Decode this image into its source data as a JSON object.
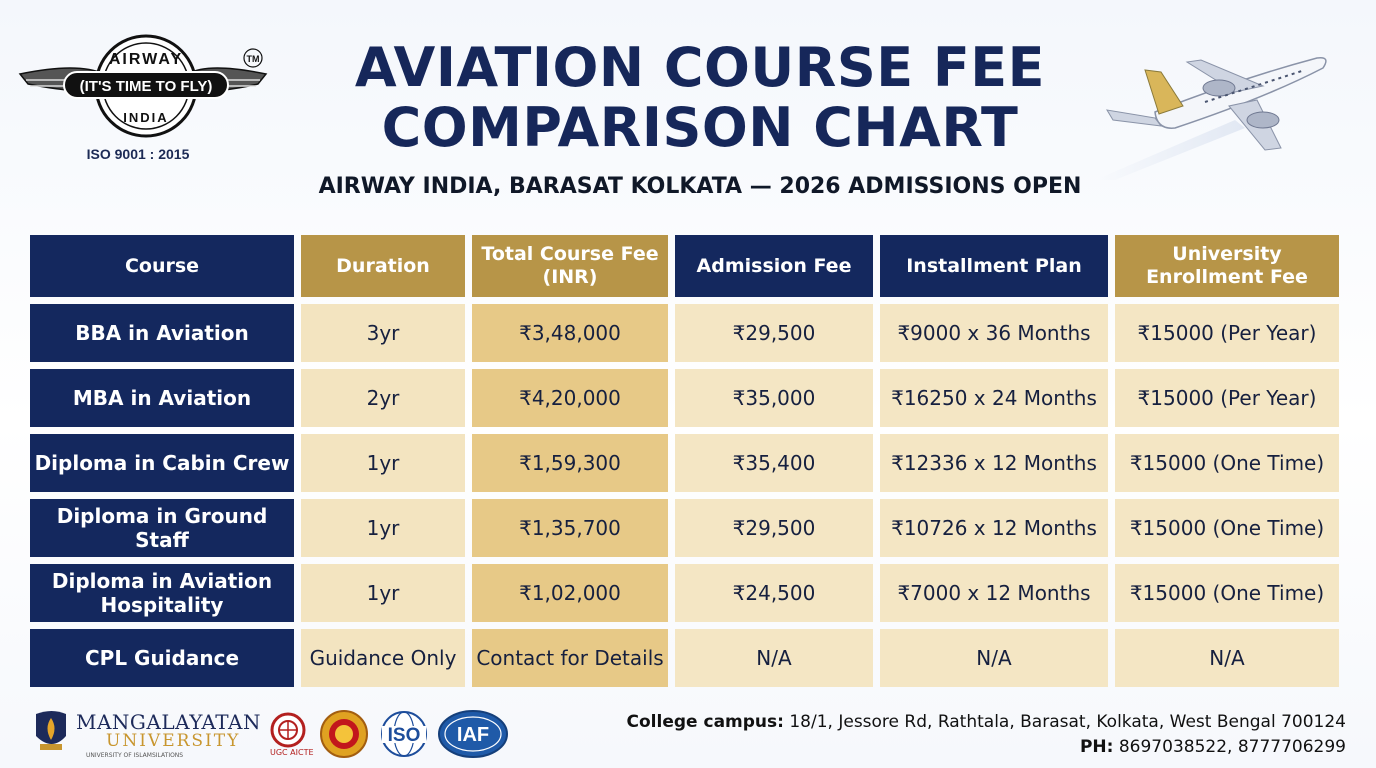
{
  "brand": {
    "top_text": "AIRWAY",
    "banner_text": "(IT'S TIME TO FLY)",
    "bottom_text": "INDIA",
    "tm": "TM",
    "iso": "ISO 9001 : 2015"
  },
  "title_line1": "AVIATION COURSE FEE",
  "title_line2": "COMPARISON CHART",
  "subtitle": "AIRWAY INDIA, BARASAT KOLKATA — 2026 ADMISSIONS OPEN",
  "table": {
    "headers": [
      "Course",
      "Duration",
      "Total Course Fee (INR)",
      "Admission Fee",
      "Installment Plan",
      "University Enrollment Fee"
    ],
    "rows": [
      [
        "BBA in Aviation",
        "3yr",
        "₹3,48,000",
        "₹29,500",
        "₹9000 x 36 Months",
        "₹15000 (Per Year)"
      ],
      [
        "MBA in Aviation",
        "2yr",
        "₹4,20,000",
        "₹35,000",
        "₹16250 x 24 Months",
        "₹15000 (Per Year)"
      ],
      [
        "Diploma in Cabin Crew",
        "1yr",
        "₹1,59,300",
        "₹35,400",
        "₹12336 x 12 Months",
        "₹15000 (One Time)"
      ],
      [
        "Diploma in Ground Staff",
        "1yr",
        "₹1,35,700",
        "₹29,500",
        "₹10726 x 12 Months",
        "₹15000 (One Time)"
      ],
      [
        "Diploma in Aviation Hospitality",
        "1yr",
        "₹1,02,000",
        "₹24,500",
        "₹7000 x 12 Months",
        "₹15000 (One Time)"
      ],
      [
        "CPL Guidance",
        "Guidance Only",
        "Contact for Details",
        "N/A",
        "N/A",
        "N/A"
      ]
    ]
  },
  "footer": {
    "university": "MANGALAYATAN",
    "university_sub": "UNIVERSITY",
    "university_tiny": "UNIVERSITY OF ISLAMSILATIONS",
    "aicte_label": "UGC AICTE",
    "iso_logo_text": "ISO",
    "iaf_logo_text": "IAF",
    "campus_label": "College campus:",
    "campus_address": "18/1, Jessore Rd, Rathtala, Barasat, Kolkata, West Bengal 700124",
    "phone_label": "PH:",
    "phone": "8697038522, 8777706299"
  },
  "colors": {
    "navy": "#14285e",
    "gold": "#b79548",
    "cream": "#f3e4c0",
    "gold_cell": "#e7c987"
  }
}
